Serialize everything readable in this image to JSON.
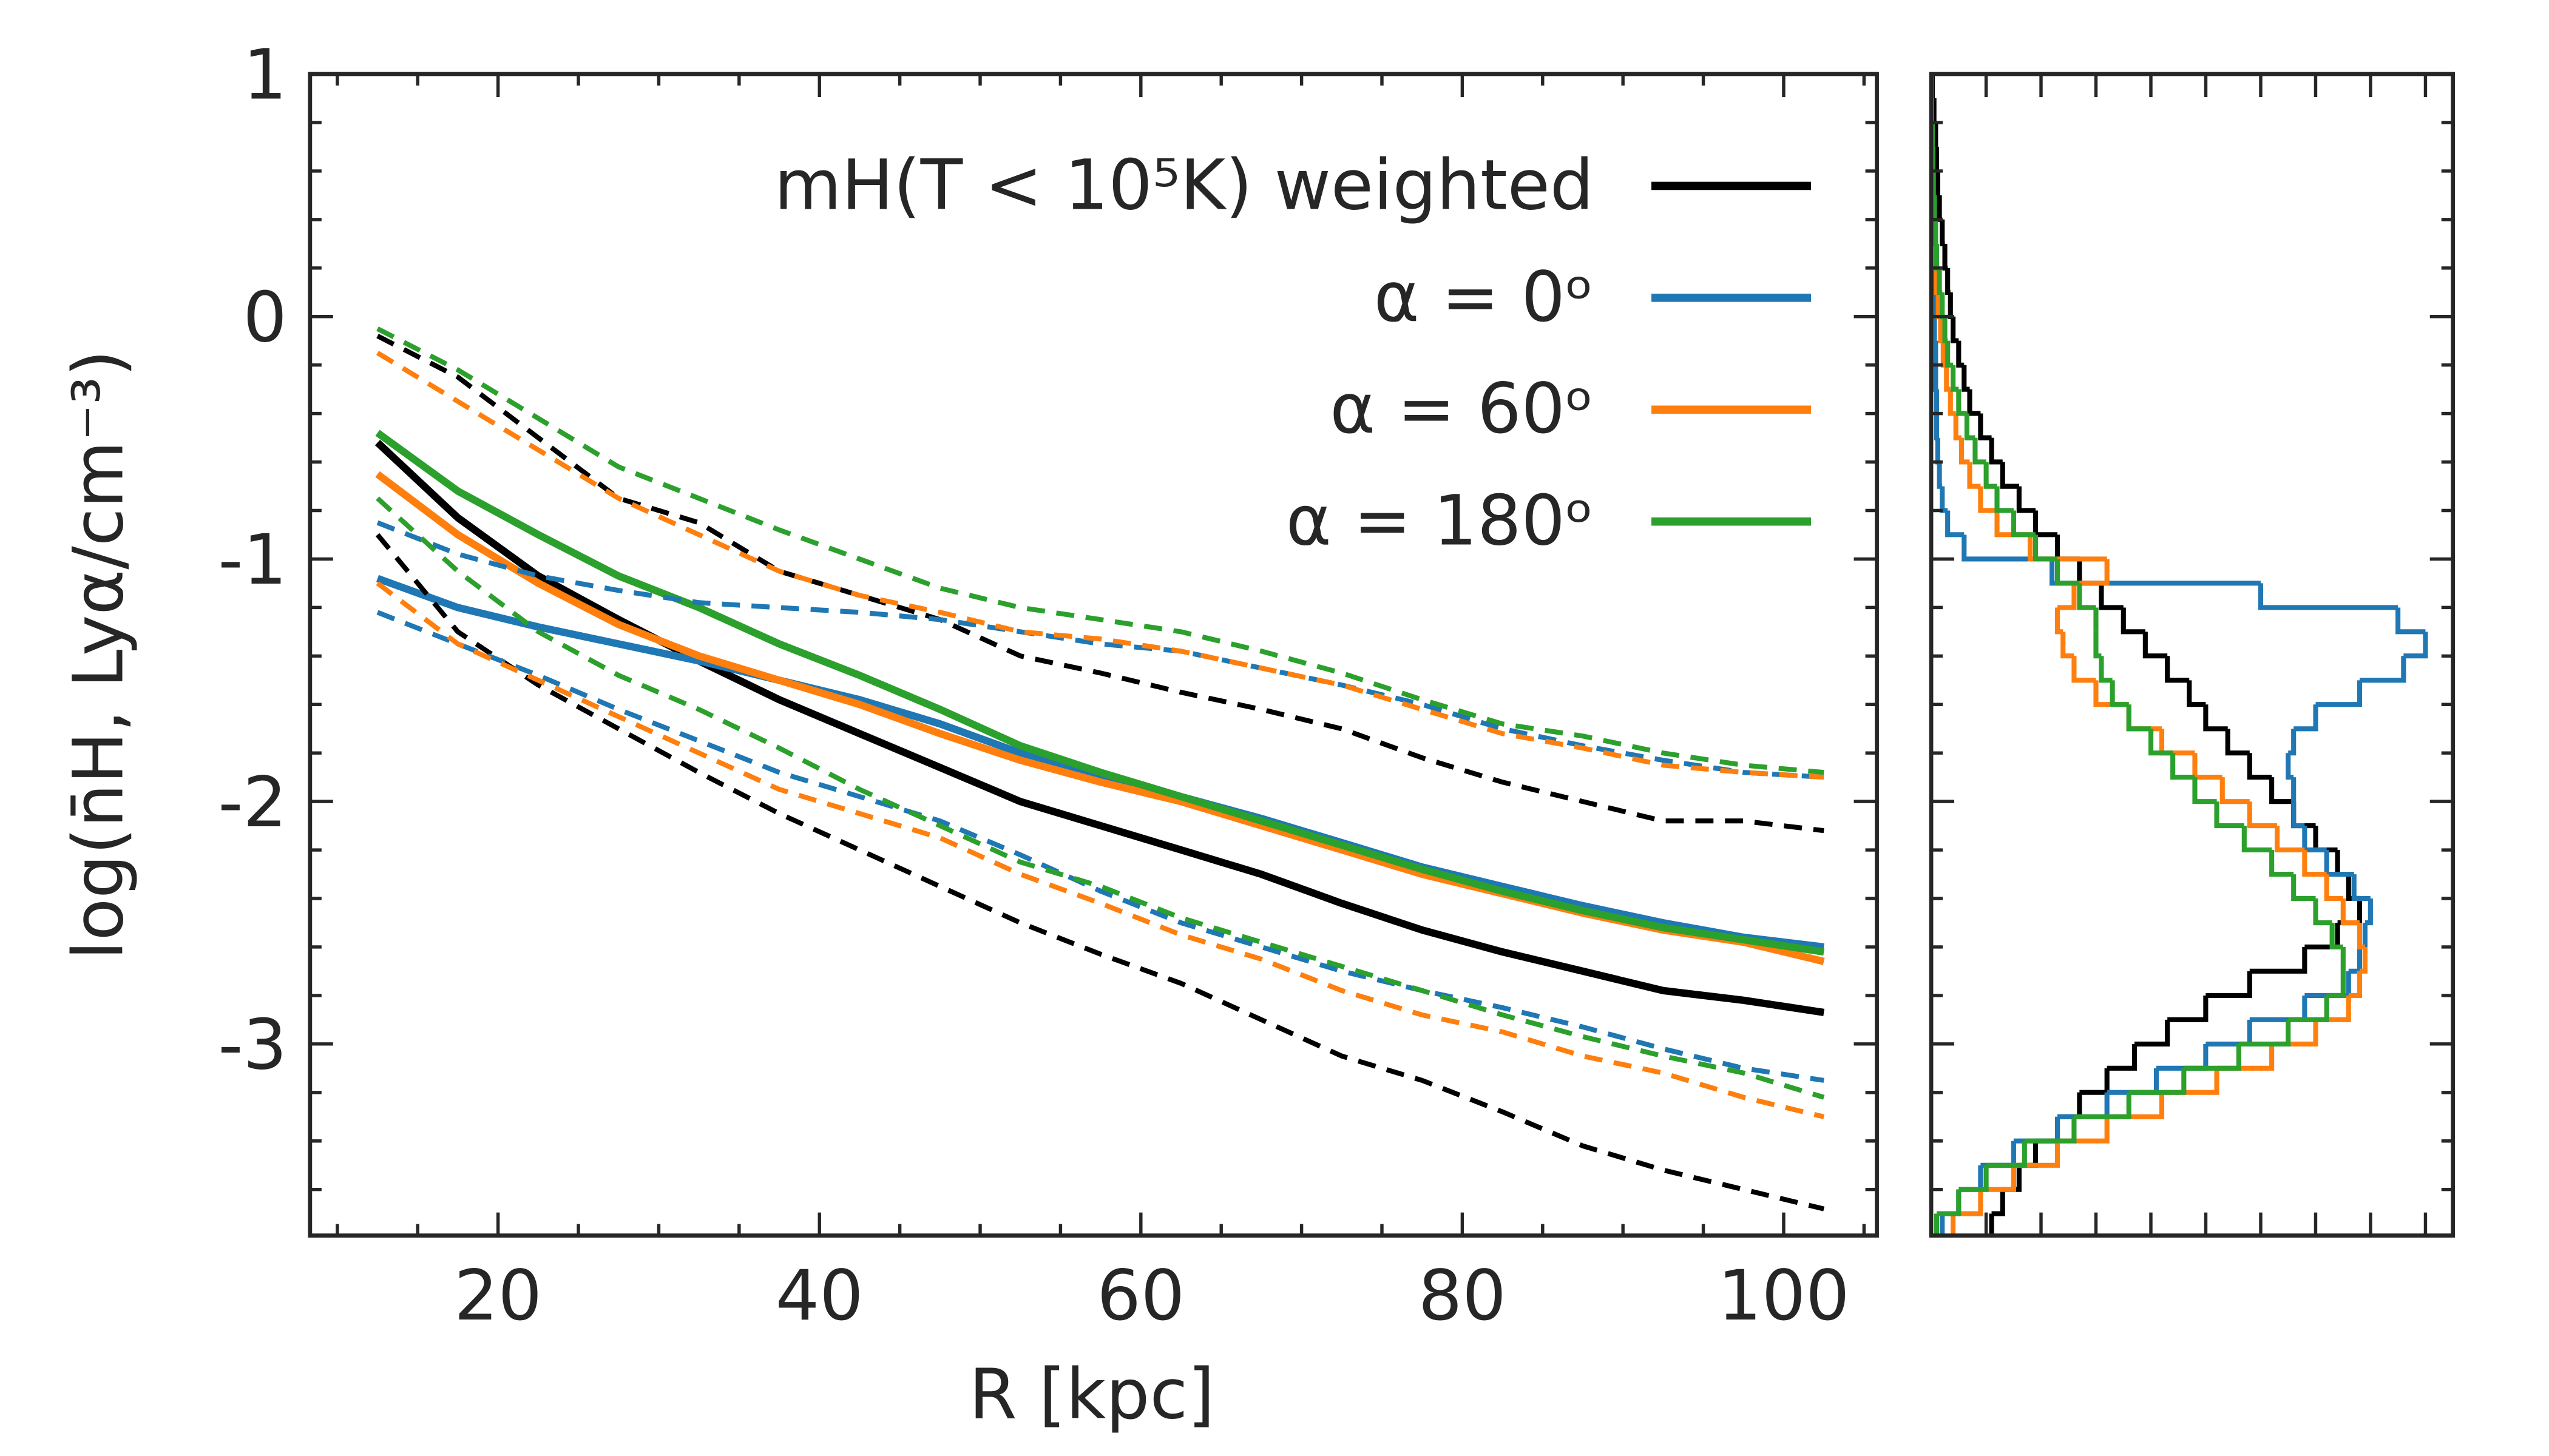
{
  "chart_data": [
    {
      "type": "line",
      "xlabel": "R [kpc]",
      "ylabel": "log(n̄H, Lyα/cm⁻³)",
      "xlim": [
        8.3,
        105.8
      ],
      "ylim": [
        -3.79,
        1
      ],
      "xticks": [
        20,
        40,
        60,
        80,
        100
      ],
      "yticks": [
        -3,
        -2,
        -1,
        0,
        1
      ],
      "xminorticks": [
        10,
        15,
        25,
        30,
        35,
        45,
        50,
        55,
        65,
        70,
        75,
        85,
        90,
        95,
        105
      ],
      "yminorticks": [
        -3.6,
        -3.4,
        -3.2,
        -2.8,
        -2.6,
        -2.4,
        -2.2,
        -1.8,
        -1.6,
        -1.4,
        -1.2,
        -0.8,
        -0.6,
        -0.4,
        -0.2,
        0.2,
        0.4,
        0.6,
        0.8
      ],
      "legend": "upper right",
      "x": [
        12.5,
        17.5,
        22.5,
        27.5,
        32.5,
        37.5,
        42.5,
        47.5,
        52.5,
        57.5,
        62.5,
        67.5,
        72.5,
        77.5,
        82.5,
        87.5,
        92.5,
        97.5,
        102.5
      ],
      "series": [
        {
          "name": "mH(T < 10⁵K) weighted",
          "color": "#000000",
          "style": "solid",
          "values": [
            -0.52,
            -0.83,
            -1.07,
            -1.25,
            -1.42,
            -1.58,
            -1.72,
            -1.86,
            -2.0,
            -2.1,
            -2.2,
            -2.3,
            -2.42,
            -2.53,
            -2.62,
            -2.7,
            -2.78,
            -2.82,
            -2.87
          ]
        },
        {
          "name": "α = 0ᵒ",
          "color": "#1f77b4",
          "style": "solid",
          "values": [
            -1.08,
            -1.2,
            -1.28,
            -1.35,
            -1.42,
            -1.5,
            -1.58,
            -1.68,
            -1.8,
            -1.9,
            -1.98,
            -2.07,
            -2.17,
            -2.27,
            -2.35,
            -2.43,
            -2.5,
            -2.56,
            -2.6
          ]
        },
        {
          "name": "α = 60ᵒ",
          "color": "#ff7f0e",
          "style": "solid",
          "values": [
            -0.65,
            -0.9,
            -1.1,
            -1.27,
            -1.4,
            -1.5,
            -1.6,
            -1.72,
            -1.83,
            -1.92,
            -2.0,
            -2.1,
            -2.2,
            -2.3,
            -2.38,
            -2.46,
            -2.53,
            -2.58,
            -2.66
          ]
        },
        {
          "name": "α = 180ᵒ",
          "color": "#2ca02c",
          "style": "solid",
          "values": [
            -0.48,
            -0.72,
            -0.9,
            -1.07,
            -1.2,
            -1.35,
            -1.48,
            -1.62,
            -1.77,
            -1.88,
            -1.98,
            -2.08,
            -2.18,
            -2.28,
            -2.37,
            -2.45,
            -2.52,
            -2.57,
            -2.62
          ]
        },
        {
          "color": "#000000",
          "style": "dashed",
          "values": [
            -0.08,
            -0.25,
            -0.5,
            -0.75,
            -0.85,
            -1.05,
            -1.15,
            -1.25,
            -1.4,
            -1.47,
            -1.55,
            -1.62,
            -1.7,
            -1.82,
            -1.92,
            -2.0,
            -2.08,
            -2.08,
            -2.12
          ]
        },
        {
          "color": "#000000",
          "style": "dashed",
          "values": [
            -0.9,
            -1.3,
            -1.52,
            -1.7,
            -1.88,
            -2.05,
            -2.2,
            -2.35,
            -2.5,
            -2.63,
            -2.75,
            -2.9,
            -3.05,
            -3.15,
            -3.28,
            -3.42,
            -3.52,
            -3.6,
            -3.68
          ]
        },
        {
          "color": "#1f77b4",
          "style": "dashed",
          "values": [
            -0.85,
            -0.98,
            -1.07,
            -1.13,
            -1.18,
            -1.2,
            -1.22,
            -1.25,
            -1.3,
            -1.35,
            -1.38,
            -1.45,
            -1.52,
            -1.6,
            -1.7,
            -1.77,
            -1.83,
            -1.88,
            -1.9
          ]
        },
        {
          "color": "#1f77b4",
          "style": "dashed",
          "values": [
            -1.22,
            -1.35,
            -1.48,
            -1.62,
            -1.75,
            -1.88,
            -1.98,
            -2.08,
            -2.22,
            -2.37,
            -2.5,
            -2.6,
            -2.7,
            -2.78,
            -2.85,
            -2.93,
            -3.02,
            -3.1,
            -3.15
          ]
        },
        {
          "color": "#ff7f0e",
          "style": "dashed",
          "values": [
            -0.15,
            -0.35,
            -0.55,
            -0.75,
            -0.9,
            -1.05,
            -1.15,
            -1.22,
            -1.3,
            -1.33,
            -1.38,
            -1.45,
            -1.52,
            -1.62,
            -1.72,
            -1.78,
            -1.85,
            -1.88,
            -1.9
          ]
        },
        {
          "color": "#ff7f0e",
          "style": "dashed",
          "values": [
            -1.1,
            -1.35,
            -1.5,
            -1.65,
            -1.8,
            -1.95,
            -2.05,
            -2.15,
            -2.3,
            -2.42,
            -2.55,
            -2.65,
            -2.78,
            -2.88,
            -2.95,
            -3.05,
            -3.12,
            -3.22,
            -3.3
          ]
        },
        {
          "color": "#2ca02c",
          "style": "dashed",
          "values": [
            -0.05,
            -0.22,
            -0.42,
            -0.62,
            -0.75,
            -0.88,
            -1.0,
            -1.12,
            -1.2,
            -1.25,
            -1.3,
            -1.38,
            -1.47,
            -1.58,
            -1.68,
            -1.73,
            -1.8,
            -1.85,
            -1.88
          ]
        },
        {
          "color": "#2ca02c",
          "style": "dashed",
          "values": [
            -0.75,
            -1.05,
            -1.3,
            -1.48,
            -1.62,
            -1.78,
            -1.95,
            -2.1,
            -2.25,
            -2.35,
            -2.48,
            -2.58,
            -2.68,
            -2.78,
            -2.88,
            -2.97,
            -3.05,
            -3.12,
            -3.22
          ]
        }
      ]
    },
    {
      "type": "histogram",
      "orientation": "horizontal",
      "xlim": [
        0,
        9.5
      ],
      "ylim": [
        -3.79,
        1
      ],
      "xticks": [
        0,
        1,
        2,
        3,
        4,
        5,
        6,
        7,
        8,
        9
      ],
      "yticks": [
        -3,
        -2,
        -1,
        0,
        1
      ],
      "yminorticks": [
        -3.6,
        -3.4,
        -3.2,
        -2.8,
        -2.6,
        -2.4,
        -2.2,
        -1.8,
        -1.6,
        -1.4,
        -1.2,
        -0.8,
        -0.6,
        -0.4,
        -0.2,
        0.2,
        0.4,
        0.6,
        0.8
      ],
      "bins": [
        -3.8,
        -3.7,
        -3.6,
        -3.5,
        -3.4,
        -3.3,
        -3.2,
        -3.1,
        -3.0,
        -2.9,
        -2.8,
        -2.7,
        -2.6,
        -2.5,
        -2.4,
        -2.3,
        -2.2,
        -2.1,
        -2.0,
        -1.9,
        -1.8,
        -1.7,
        -1.6,
        -1.5,
        -1.4,
        -1.3,
        -1.2,
        -1.1,
        -1.0,
        -0.9,
        -0.8,
        -0.7,
        -0.6,
        -0.5,
        -0.4,
        -0.3,
        -0.2,
        -0.1,
        0.0,
        0.1,
        0.2,
        0.3,
        0.4,
        0.5,
        0.6,
        0.7,
        0.8,
        0.9,
        1.0
      ],
      "series": [
        {
          "color": "#000000",
          "values": [
            1.1,
            1.3,
            1.6,
            1.9,
            2.3,
            2.7,
            3.2,
            3.7,
            4.3,
            5.0,
            5.8,
            6.8,
            7.4,
            7.8,
            7.6,
            7.4,
            7.0,
            6.6,
            6.2,
            5.8,
            5.4,
            5.0,
            4.7,
            4.3,
            3.9,
            3.5,
            3.1,
            2.7,
            2.3,
            1.9,
            1.6,
            1.3,
            1.1,
            0.9,
            0.7,
            0.6,
            0.5,
            0.4,
            0.35,
            0.3,
            0.25,
            0.2,
            0.15,
            0.12,
            0.1,
            0.08,
            0.05,
            0.02
          ]
        },
        {
          "color": "#1f77b4",
          "values": [
            0.2,
            0.5,
            0.9,
            1.5,
            2.3,
            3.2,
            4.1,
            5.0,
            5.8,
            6.8,
            7.6,
            7.8,
            7.9,
            8.0,
            7.7,
            7.2,
            6.8,
            6.6,
            6.6,
            6.5,
            6.6,
            7.0,
            7.8,
            8.6,
            9.0,
            8.5,
            6.0,
            2.2,
            0.6,
            0.3,
            0.2,
            0.15,
            0.12,
            0.1,
            0.1,
            0.08,
            0.08,
            0.06,
            0.05,
            0.05,
            0.04,
            0.03,
            0.03,
            0.02,
            0.02,
            0.01,
            0.01,
            0.0
          ]
        },
        {
          "color": "#ff7f0e",
          "values": [
            0.4,
            0.9,
            1.5,
            2.3,
            3.2,
            4.2,
            5.2,
            6.2,
            7.0,
            7.6,
            7.8,
            7.9,
            7.8,
            7.5,
            7.2,
            6.8,
            6.3,
            5.8,
            5.3,
            4.8,
            4.2,
            3.6,
            3.0,
            2.6,
            2.4,
            2.3,
            2.6,
            3.2,
            1.8,
            1.2,
            0.9,
            0.7,
            0.55,
            0.45,
            0.35,
            0.28,
            0.22,
            0.17,
            0.13,
            0.1,
            0.08,
            0.06,
            0.05,
            0.04,
            0.03,
            0.02,
            0.01,
            0.0
          ]
        },
        {
          "color": "#2ca02c",
          "values": [
            0.1,
            0.5,
            1.0,
            1.7,
            2.6,
            3.6,
            4.6,
            5.6,
            6.5,
            7.2,
            7.5,
            7.5,
            7.3,
            7.0,
            6.6,
            6.2,
            5.7,
            5.2,
            4.8,
            4.4,
            4.0,
            3.6,
            3.3,
            3.1,
            3.0,
            3.0,
            2.7,
            2.3,
            1.9,
            1.5,
            1.2,
            1.0,
            0.8,
            0.65,
            0.5,
            0.4,
            0.3,
            0.25,
            0.2,
            0.15,
            0.1,
            0.08,
            0.06,
            0.04,
            0.03,
            0.02,
            0.01,
            0.0
          ]
        }
      ]
    }
  ]
}
